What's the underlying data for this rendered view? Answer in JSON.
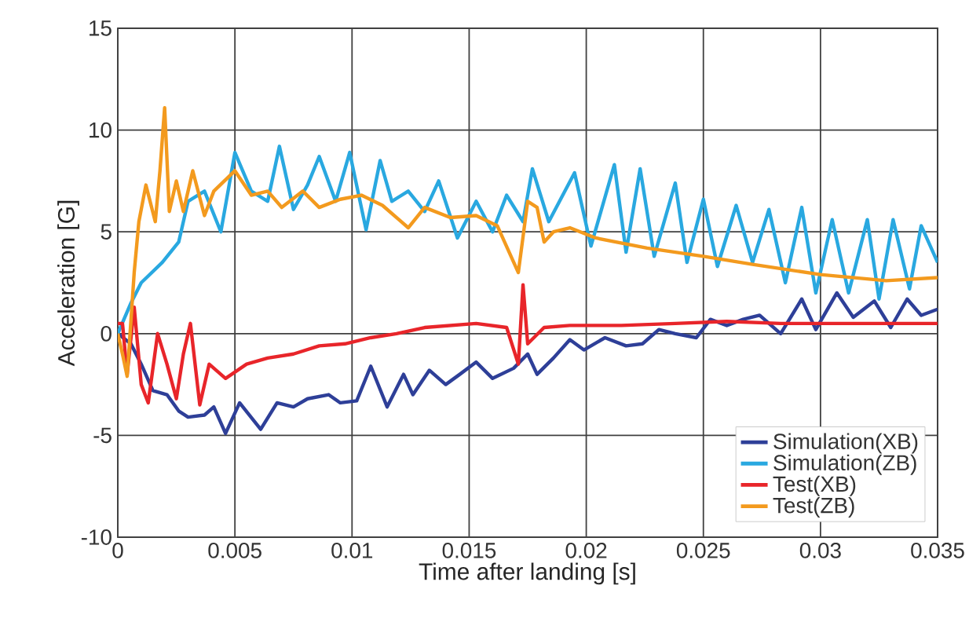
{
  "chart_data": {
    "type": "line",
    "xlabel": "Time after landing [s]",
    "ylabel": "Acceleration [G]",
    "xlim": [
      0,
      0.035
    ],
    "ylim": [
      -10,
      15
    ],
    "xticks": [
      0,
      0.005,
      0.01,
      0.015,
      0.02,
      0.025,
      0.03,
      0.035
    ],
    "yticks": [
      -10,
      -5,
      0,
      5,
      10,
      15
    ],
    "grid": true,
    "legend": "bottom right",
    "line_style": "solid",
    "series": [
      {
        "name": "Simulation(XB)",
        "color": "#2e3f98",
        "x": [
          0,
          0.00056,
          0.001,
          0.0015,
          0.0021,
          0.0026,
          0.003,
          0.0037,
          0.0041,
          0.0046,
          0.0052,
          0.0061,
          0.0068,
          0.0075,
          0.0081,
          0.009,
          0.0095,
          0.0102,
          0.0108,
          0.0115,
          0.0122,
          0.0126,
          0.0133,
          0.014,
          0.0146,
          0.0153,
          0.016,
          0.0169,
          0.0175,
          0.0179,
          0.0186,
          0.0193,
          0.0199,
          0.0208,
          0.0217,
          0.0224,
          0.0231,
          0.0238,
          0.0247,
          0.0253,
          0.026,
          0.0267,
          0.0274,
          0.0283,
          0.0292,
          0.0298,
          0.0307,
          0.0314,
          0.0323,
          0.033,
          0.0337,
          0.0343,
          0.035
        ],
        "values": [
          0,
          -0.5,
          -1.5,
          -2.8,
          -3,
          -3.8,
          -4.1,
          -4,
          -3.6,
          -4.9,
          -3.4,
          -4.7,
          -3.4,
          -3.6,
          -3.2,
          -3,
          -3.4,
          -3.3,
          -1.6,
          -3.6,
          -2,
          -3,
          -1.8,
          -2.5,
          -2,
          -1.4,
          -2.2,
          -1.7,
          -1,
          -2,
          -1.2,
          -0.3,
          -0.8,
          -0.2,
          -0.6,
          -0.5,
          0.2,
          0,
          -0.2,
          0.7,
          0.4,
          0.7,
          0.9,
          0,
          1.7,
          0.2,
          2,
          0.8,
          1.6,
          0.3,
          1.7,
          0.9,
          1.2
        ]
      },
      {
        "name": "Simulation(ZB)",
        "color": "#29a8e0",
        "x": [
          0,
          0.00056,
          0.001,
          0.0019,
          0.0026,
          0.003,
          0.0037,
          0.0044,
          0.005,
          0.0057,
          0.0064,
          0.0069,
          0.0075,
          0.0081,
          0.0086,
          0.0093,
          0.0099,
          0.0106,
          0.0112,
          0.0117,
          0.0124,
          0.0131,
          0.0137,
          0.0145,
          0.0153,
          0.016,
          0.0166,
          0.0173,
          0.0177,
          0.0184,
          0.0195,
          0.0202,
          0.0212,
          0.0217,
          0.0223,
          0.0229,
          0.0238,
          0.0243,
          0.025,
          0.0256,
          0.0264,
          0.0271,
          0.0278,
          0.0285,
          0.0292,
          0.0298,
          0.0305,
          0.0312,
          0.032,
          0.0325,
          0.0331,
          0.0338,
          0.0343,
          0.035
        ],
        "values": [
          0,
          1.5,
          2.5,
          3.5,
          4.5,
          6.5,
          7,
          5,
          8.9,
          7,
          6.5,
          9.2,
          6.1,
          7.3,
          8.7,
          6.5,
          8.9,
          5.1,
          8.5,
          6.5,
          7,
          6,
          7.5,
          4.7,
          6.5,
          5,
          6.8,
          5.5,
          8.1,
          5.5,
          7.9,
          4.3,
          8.3,
          4,
          8.1,
          3.8,
          7.4,
          3.5,
          6.6,
          3.3,
          6.3,
          3.5,
          6.1,
          2.5,
          6.2,
          2,
          5.6,
          2,
          5.6,
          1.7,
          5.6,
          2.2,
          5.3,
          3.5
        ]
      },
      {
        "name": "Test(XB)",
        "color": "#e8252a",
        "x": [
          0,
          0.0002,
          0.0004,
          0.0007,
          0.001,
          0.0013,
          0.0017,
          0.0021,
          0.0025,
          0.0028,
          0.0031,
          0.0035,
          0.0039,
          0.0046,
          0.0055,
          0.0064,
          0.0075,
          0.0086,
          0.0097,
          0.0108,
          0.0119,
          0.0131,
          0.0142,
          0.0153,
          0.0166,
          0.0171,
          0.0173,
          0.0175,
          0.0182,
          0.0193,
          0.0215,
          0.0238,
          0.026,
          0.0283,
          0.0305,
          0.0328,
          0.035
        ],
        "values": [
          0.5,
          0.5,
          -2,
          1.3,
          -2.5,
          -3.4,
          0,
          -1.5,
          -3.2,
          -1,
          0.5,
          -3.5,
          -1.5,
          -2.2,
          -1.5,
          -1.2,
          -1,
          -0.6,
          -0.5,
          -0.2,
          0,
          0.3,
          0.4,
          0.5,
          0.3,
          -1.5,
          2.4,
          -0.5,
          0.3,
          0.4,
          0.4,
          0.5,
          0.6,
          0.5,
          0.5,
          0.5,
          0.5
        ]
      },
      {
        "name": "Test(ZB)",
        "color": "#f39a1e",
        "x": [
          0,
          0.0002,
          0.0004,
          0.0007,
          0.0009,
          0.0012,
          0.0016,
          0.0018,
          0.002,
          0.0022,
          0.0025,
          0.0028,
          0.0032,
          0.0037,
          0.0041,
          0.005,
          0.0057,
          0.0064,
          0.007,
          0.0079,
          0.0086,
          0.0095,
          0.0104,
          0.0113,
          0.0124,
          0.0131,
          0.0142,
          0.0153,
          0.0162,
          0.0171,
          0.0175,
          0.0179,
          0.0182,
          0.0186,
          0.0193,
          0.0204,
          0.0226,
          0.025,
          0.0271,
          0.03,
          0.0328,
          0.035
        ],
        "values": [
          0,
          -1,
          -2.1,
          3,
          5.5,
          7.3,
          5.5,
          8,
          11.1,
          6,
          7.5,
          6,
          8,
          5.8,
          7,
          8,
          6.8,
          7,
          6.2,
          7,
          6.2,
          6.6,
          6.8,
          6.3,
          5.2,
          6.2,
          5.7,
          5.8,
          5.3,
          3,
          6.5,
          6.2,
          4.5,
          5,
          5.2,
          4.7,
          4.2,
          3.8,
          3.4,
          2.9,
          2.6,
          2.75
        ]
      }
    ]
  }
}
